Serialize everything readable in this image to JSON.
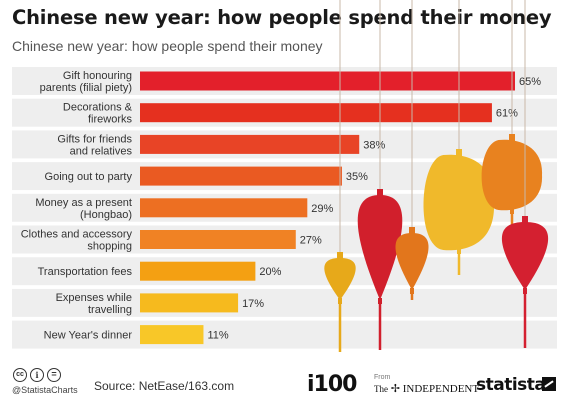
{
  "title": "Chinese new year: how people spend their money",
  "subtitle": "Chinese new year: how people spend their money",
  "chart_data": {
    "type": "bar",
    "orientation": "horizontal",
    "categories": [
      [
        "Gift honouring",
        "parents (filial piety)"
      ],
      [
        "Decorations &",
        "fireworks"
      ],
      [
        "Gifts for friends",
        "and relatives"
      ],
      [
        "Going out to party"
      ],
      [
        "Money as a present",
        "(Hongbao)"
      ],
      [
        "Clothes and accessory",
        "shopping"
      ],
      [
        "Transportation fees"
      ],
      [
        "Expenses while",
        "travelling"
      ],
      [
        "New Year's dinner"
      ]
    ],
    "values": [
      65,
      61,
      38,
      35,
      29,
      27,
      20,
      17,
      11
    ],
    "value_labels": [
      "65%",
      "61%",
      "38%",
      "35%",
      "29%",
      "27%",
      "20%",
      "17%",
      "11%"
    ],
    "bar_colors": [
      "#e3202b",
      "#e5301f",
      "#e84426",
      "#ea5a22",
      "#ed6f22",
      "#f08224",
      "#f4a012",
      "#f6ba1e",
      "#f8c728"
    ],
    "row_background": "#eeeeee",
    "xlim": [
      0,
      65
    ],
    "grid": false,
    "legend": "none"
  },
  "decoration": {
    "lantern_colors": [
      "#d11f2c",
      "#e7a91a",
      "#e2761c",
      "#f0b92b",
      "#e8821f",
      "#d42030"
    ]
  },
  "footer": {
    "handle": "@StatistaCharts",
    "source": "Source: NetEase/163.com",
    "i100": "i100",
    "from": "From",
    "independent_the": "The",
    "independent_name": "INDEPENDENT",
    "statista": "statista"
  }
}
